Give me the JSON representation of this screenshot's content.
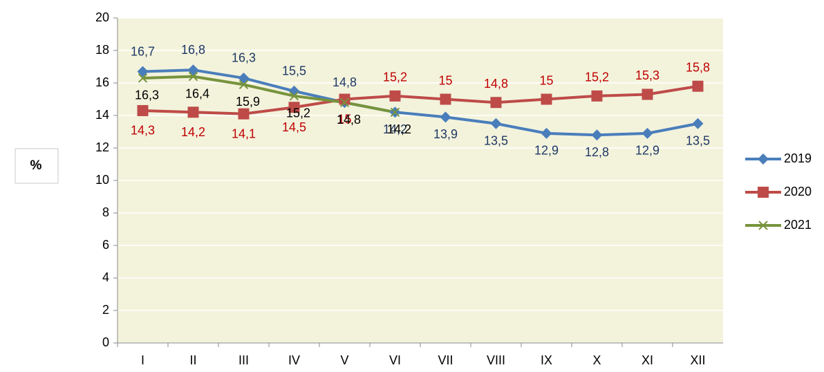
{
  "chart_data": {
    "type": "line",
    "y_label": "%",
    "categories": [
      "I",
      "II",
      "III",
      "IV",
      "V",
      "VI",
      "VII",
      "VIII",
      "IX",
      "X",
      "XI",
      "XII"
    ],
    "series": [
      {
        "name": "2019",
        "color": "#4a7ebb",
        "marker": "diamond",
        "values": [
          16.7,
          16.8,
          16.3,
          15.5,
          14.8,
          14.2,
          13.9,
          13.5,
          12.9,
          12.8,
          12.9,
          13.5
        ],
        "value_labels": [
          "16,7",
          "16,8",
          "16,3",
          "15,5",
          "14,8",
          "14,2",
          "13,9",
          "13,5",
          "12,9",
          "12,8",
          "12,9",
          "13,5"
        ]
      },
      {
        "name": "2020",
        "color": "#be4b48",
        "marker": "square",
        "values": [
          14.3,
          14.2,
          14.1,
          14.5,
          15,
          15.2,
          15,
          14.8,
          15,
          15.2,
          15.3,
          15.8
        ],
        "value_labels": [
          "14,3",
          "14,2",
          "14,1",
          "14,5",
          "15",
          "15,2",
          "15",
          "14,8",
          "15",
          "15,2",
          "15,3",
          "15,8"
        ]
      },
      {
        "name": "2021",
        "color": "#77933c",
        "marker": "x",
        "values": [
          16.3,
          16.4,
          15.9,
          15.2,
          14.8,
          14.2,
          null,
          null,
          null,
          null,
          null,
          null
        ],
        "value_labels": [
          "16,3",
          "16,4",
          "15,9",
          "15,2",
          "14,8",
          "14,2",
          null,
          null,
          null,
          null,
          null,
          null
        ]
      }
    ],
    "ylim": [
      0,
      20
    ],
    "yticks": [
      0,
      2,
      4,
      6,
      8,
      10,
      12,
      14,
      16,
      18,
      20
    ],
    "grid": true,
    "legend": "right"
  }
}
